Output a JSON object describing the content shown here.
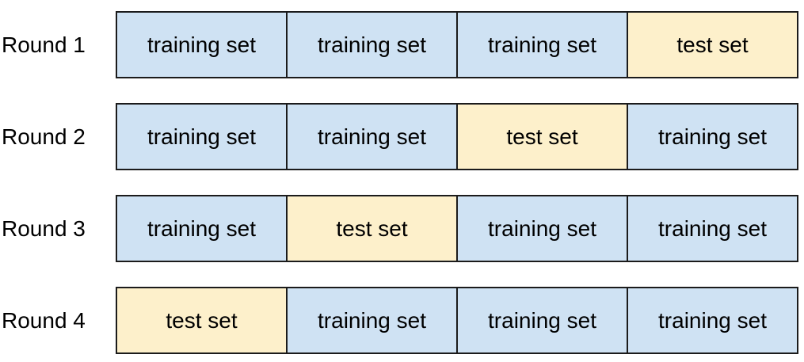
{
  "colors": {
    "training_bg": "#cfe2f3",
    "test_bg": "#fdf0cb",
    "border": "#1b1b1b",
    "text": "#000000",
    "page_bg": "#ffffff"
  },
  "rows": [
    {
      "label": "Round 1",
      "cells": [
        {
          "text": "training set",
          "type": "training"
        },
        {
          "text": "training set",
          "type": "training"
        },
        {
          "text": "training set",
          "type": "training"
        },
        {
          "text": "test set",
          "type": "test"
        }
      ]
    },
    {
      "label": "Round 2",
      "cells": [
        {
          "text": "training set",
          "type": "training"
        },
        {
          "text": "training set",
          "type": "training"
        },
        {
          "text": "test set",
          "type": "test"
        },
        {
          "text": "training set",
          "type": "training"
        }
      ]
    },
    {
      "label": "Round 3",
      "cells": [
        {
          "text": "training set",
          "type": "training"
        },
        {
          "text": "test set",
          "type": "test"
        },
        {
          "text": "training set",
          "type": "training"
        },
        {
          "text": "training set",
          "type": "training"
        }
      ]
    },
    {
      "label": "Round 4",
      "cells": [
        {
          "text": "test set",
          "type": "test"
        },
        {
          "text": "training set",
          "type": "training"
        },
        {
          "text": "training set",
          "type": "training"
        },
        {
          "text": "training set",
          "type": "training"
        }
      ]
    }
  ]
}
